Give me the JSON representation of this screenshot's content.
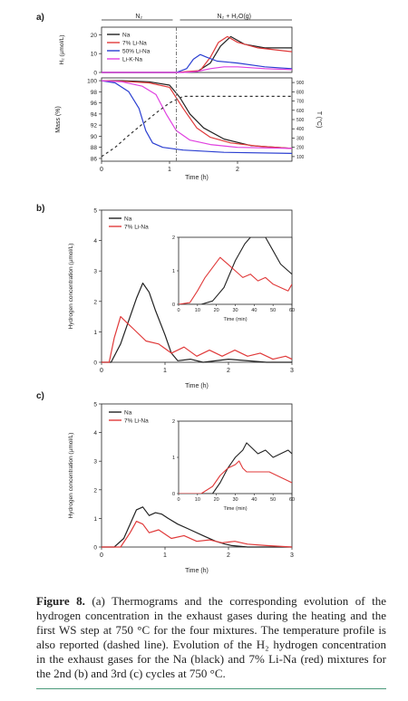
{
  "panel_labels": {
    "a": "a)",
    "b": "b)",
    "c": "c)"
  },
  "caption": {
    "figure_label": "Figure 8.",
    "text": " (a) Thermograms and the corresponding evolution of the hydrogen concentration in the exhaust gases during the heating and the first WS step at 750 °C for the four mixtures. The temperature profile is also reported (dashed line). Evolution of the H₂ hydrogen concentration in the exhaust gases for the Na (black) and 7% Li-Na (red) mixtures for the 2nd (b) and 3rd (c) cycles at 750 °C."
  },
  "colors": {
    "Na": "#222222",
    "7% Li-Na": "#e03a3a",
    "50% Li-Na": "#2b3fd1",
    "Li-K-Na": "#e040e0",
    "temp": "#333333"
  },
  "chart_data": [
    {
      "type": "line",
      "panel": "a",
      "phase_labels": [
        "N₂",
        "N₂ + H₂O(g)"
      ],
      "xlabel": "Time (h)",
      "xticks": [
        "0",
        "1",
        "2"
      ],
      "xlim": [
        0,
        2.8
      ],
      "grid": false,
      "legend": "top-left",
      "top": {
        "ylabel": "H₂ (µmol/L)",
        "yticks": [
          0,
          10,
          20
        ],
        "ylim": [
          0,
          24
        ],
        "series": [
          {
            "name": "Na",
            "x": [
              0,
              1.1,
              1.4,
              1.6,
              1.75,
              1.9,
              2.1,
              2.4,
              2.8
            ],
            "y": [
              0,
              0,
              0.3,
              5,
              14,
              19,
              15,
              13,
              13
            ]
          },
          {
            "name": "7% Li-Na",
            "x": [
              0,
              1.1,
              1.45,
              1.6,
              1.72,
              1.85,
              2.0,
              2.3,
              2.8
            ],
            "y": [
              0,
              0,
              1,
              8,
              16,
              19,
              16,
              13,
              11
            ]
          },
          {
            "name": "50% Li-Na",
            "x": [
              0,
              1.1,
              1.25,
              1.35,
              1.45,
              1.55,
              1.7,
              2.0,
              2.4,
              2.8
            ],
            "y": [
              0,
              0,
              2,
              7,
              9.5,
              8,
              6,
              5,
              3,
              2
            ]
          },
          {
            "name": "Li-K-Na",
            "x": [
              0,
              1.2,
              1.4,
              1.6,
              1.8,
              2.0,
              2.4,
              2.8
            ],
            "y": [
              0,
              0,
              0.5,
              2,
              3,
              3,
              2,
              1.5
            ]
          }
        ]
      },
      "bottom": {
        "ylabel": "Mass (%)",
        "yticks": [
          86,
          88,
          90,
          92,
          94,
          96,
          98,
          100
        ],
        "ylim": [
          85.5,
          100.5
        ],
        "y2label": "T (°C)",
        "y2ticks": [
          100,
          200,
          300,
          400,
          500,
          600,
          700,
          800,
          900
        ],
        "y2lim": [
          50,
          950
        ],
        "series": [
          {
            "name": "Na",
            "x": [
              0,
              0.3,
              0.7,
              1.0,
              1.15,
              1.3,
              1.5,
              1.8,
              2.2,
              2.8
            ],
            "y": [
              100,
              100,
              99.8,
              99.2,
              97,
              94,
              91.5,
              89.5,
              88.3,
              87.8
            ]
          },
          {
            "name": "7% Li-Na",
            "x": [
              0,
              0.3,
              0.7,
              1.0,
              1.2,
              1.4,
              1.6,
              1.9,
              2.3,
              2.8
            ],
            "y": [
              100,
              99.9,
              99.6,
              98.8,
              95,
              91.5,
              89.8,
              88.8,
              88.2,
              87.8
            ]
          },
          {
            "name": "50% Li-Na",
            "x": [
              0,
              0.2,
              0.4,
              0.55,
              0.65,
              0.75,
              0.9,
              1.2,
              1.8,
              2.8
            ],
            "y": [
              100,
              99.6,
              98,
              95,
              91,
              88.8,
              88,
              87.5,
              87.1,
              86.9
            ]
          },
          {
            "name": "Li-K-Na",
            "x": [
              0,
              0.3,
              0.6,
              0.8,
              0.95,
              1.1,
              1.3,
              1.6,
              2.0,
              2.8
            ],
            "y": [
              100,
              99.8,
              99,
              97.5,
              94,
              91,
              89.3,
              88.5,
              88,
              87.8
            ]
          },
          {
            "name": "T",
            "dashed": true,
            "axis": "right",
            "x": [
              0,
              0.2,
              0.4,
              0.6,
              0.8,
              1.0,
              1.2,
              1.6,
              2.0,
              2.8
            ],
            "y": [
              100,
              200,
              330,
              450,
              570,
              680,
              750,
              750,
              750,
              750
            ]
          }
        ]
      }
    },
    {
      "type": "line",
      "panel": "b",
      "ylabel": "Hydrogen concentration (µmol/L)",
      "xlabel": "Time (h)",
      "xticks": [
        "0",
        "1",
        "2",
        "3"
      ],
      "xlim": [
        0,
        3
      ],
      "yticks": [
        0,
        1,
        2,
        3,
        4,
        5
      ],
      "ylim": [
        0,
        5
      ],
      "grid": false,
      "legend": "top-left",
      "series": [
        {
          "name": "Na",
          "x": [
            0,
            0.15,
            0.3,
            0.45,
            0.55,
            0.65,
            0.75,
            0.85,
            1.0,
            1.1,
            1.2,
            1.4,
            1.6,
            2.0,
            2.6,
            3.0
          ],
          "y": [
            0,
            0,
            0.6,
            1.5,
            2.1,
            2.6,
            2.3,
            1.7,
            0.9,
            0.3,
            0.05,
            0.1,
            0,
            0.1,
            0,
            0
          ]
        },
        {
          "name": "7% Li-Na",
          "x": [
            0,
            0.12,
            0.2,
            0.3,
            0.4,
            0.5,
            0.7,
            0.9,
            1.1,
            1.3,
            1.5,
            1.7,
            1.9,
            2.1,
            2.3,
            2.5,
            2.7,
            2.9,
            3.0
          ],
          "y": [
            0,
            0,
            0.8,
            1.5,
            1.3,
            1.1,
            0.7,
            0.6,
            0.3,
            0.5,
            0.2,
            0.4,
            0.2,
            0.4,
            0.2,
            0.3,
            0.1,
            0.2,
            0.1
          ]
        }
      ],
      "inset": {
        "xlabel": "Time (min)",
        "xticks": [
          "0",
          "10",
          "20",
          "30",
          "40",
          "50",
          "60"
        ],
        "xlim": [
          0,
          60
        ],
        "yticks": [
          "0",
          "1",
          "2"
        ],
        "ylim": [
          0,
          2
        ],
        "series": [
          {
            "name": "Na",
            "x": [
              0,
              12,
              18,
              24,
              30,
              35,
              38,
              42,
              46,
              50,
              54,
              58,
              60
            ],
            "y": [
              0,
              0,
              0.1,
              0.5,
              1.3,
              1.8,
              2.0,
              2.0,
              2.0,
              1.6,
              1.2,
              1.0,
              0.9
            ]
          },
          {
            "name": "7% Li-Na",
            "x": [
              0,
              6,
              10,
              14,
              18,
              22,
              24,
              26,
              30,
              34,
              38,
              42,
              46,
              50,
              54,
              58,
              60
            ],
            "y": [
              0,
              0.05,
              0.4,
              0.8,
              1.1,
              1.4,
              1.3,
              1.2,
              1.0,
              0.8,
              0.9,
              0.7,
              0.8,
              0.6,
              0.5,
              0.4,
              0.6
            ]
          }
        ]
      }
    },
    {
      "type": "line",
      "panel": "c",
      "ylabel": "Hydrogen concentration (µmol/L)",
      "xlabel": "Time (h)",
      "xticks": [
        "0",
        "1",
        "2",
        "3"
      ],
      "xlim": [
        0,
        3
      ],
      "yticks": [
        0,
        1,
        2,
        3,
        4,
        5
      ],
      "ylim": [
        0,
        5
      ],
      "grid": false,
      "legend": "top-left",
      "series": [
        {
          "name": "Na",
          "x": [
            0,
            0.2,
            0.35,
            0.45,
            0.55,
            0.65,
            0.75,
            0.85,
            0.95,
            1.05,
            1.2,
            1.4,
            1.6,
            1.8,
            1.95,
            2.05,
            2.3,
            2.8,
            3.0
          ],
          "y": [
            0,
            0,
            0.3,
            0.8,
            1.3,
            1.4,
            1.1,
            1.2,
            1.15,
            1.0,
            0.8,
            0.6,
            0.4,
            0.2,
            0.1,
            0.05,
            0,
            0,
            0
          ]
        },
        {
          "name": "7% Li-Na",
          "x": [
            0,
            0.3,
            0.45,
            0.55,
            0.65,
            0.75,
            0.9,
            1.1,
            1.3,
            1.5,
            1.7,
            1.9,
            2.1,
            2.3,
            2.6,
            3.0
          ],
          "y": [
            0,
            0,
            0.5,
            0.9,
            0.8,
            0.5,
            0.6,
            0.3,
            0.4,
            0.2,
            0.25,
            0.15,
            0.2,
            0.1,
            0.05,
            0
          ]
        }
      ],
      "inset": {
        "xlabel": "Time (min)",
        "xticks": [
          "0",
          "10",
          "20",
          "30",
          "40",
          "50",
          "60"
        ],
        "xlim": [
          0,
          60
        ],
        "yticks": [
          "0",
          "1",
          "2"
        ],
        "ylim": [
          0,
          2
        ],
        "series": [
          {
            "name": "Na",
            "x": [
              0,
              18,
              22,
              26,
              30,
              34,
              36,
              38,
              42,
              46,
              50,
              54,
              58,
              60
            ],
            "y": [
              0,
              0,
              0.3,
              0.7,
              1.0,
              1.2,
              1.4,
              1.3,
              1.1,
              1.2,
              1.0,
              1.1,
              1.2,
              1.1
            ]
          },
          {
            "name": "7% Li-Na",
            "x": [
              0,
              12,
              18,
              22,
              26,
              30,
              32,
              34,
              36,
              40,
              44,
              48,
              52,
              56,
              60
            ],
            "y": [
              0,
              0,
              0.2,
              0.5,
              0.7,
              0.8,
              0.9,
              0.7,
              0.6,
              0.6,
              0.6,
              0.6,
              0.5,
              0.4,
              0.3
            ]
          }
        ]
      }
    }
  ]
}
